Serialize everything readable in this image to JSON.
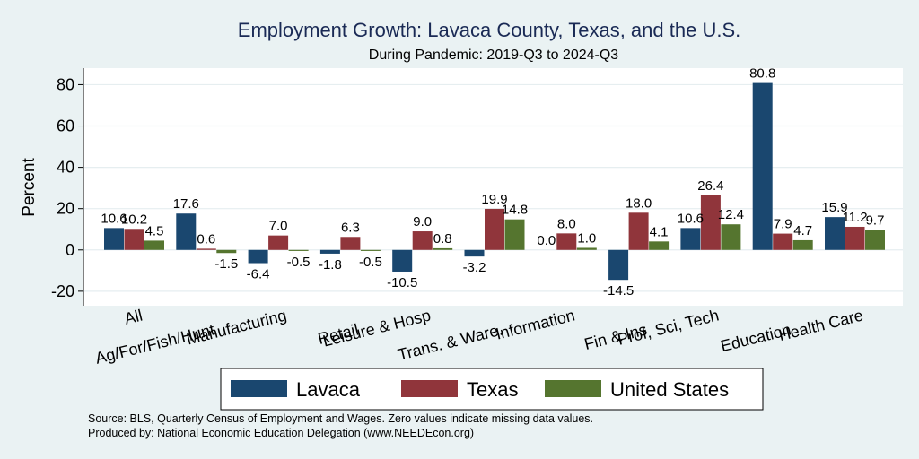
{
  "colors": {
    "background": "#eaf2f3",
    "plot_background": "#ffffff",
    "gridline": "#e6eef0",
    "axis": "#000000",
    "title": "#1a2a55"
  },
  "notes": {
    "source": "Source: BLS, Quarterly Census of Employment and Wages. Zero values indicate missing data values.",
    "produced": "Produced by: National Economic Education Delegation (www.NEEDEcon.org)"
  },
  "chart_data": {
    "type": "bar",
    "title": "Employment Growth: Lavaca County, Texas, and the U.S.",
    "subtitle": "During Pandemic: 2019-Q3 to 2024-Q3",
    "xlabel": "",
    "ylabel": "Percent",
    "ylim": [
      -27,
      88
    ],
    "yticks": [
      -20,
      0,
      20,
      40,
      60,
      80
    ],
    "grid": true,
    "legend_position": "bottom",
    "categories": [
      "All",
      "Ag/For/Fish/Hunt",
      "Manufacturing",
      "Retail",
      "Leisure & Hosp",
      "Trans. & Ware.",
      "Information",
      "Fin & Ins",
      "Prof, Sci, Tech",
      "Education",
      "Health Care"
    ],
    "series": [
      {
        "name": "Lavaca",
        "color": "#1a476f",
        "values": [
          10.6,
          17.6,
          -6.4,
          -1.8,
          -10.5,
          -3.2,
          0.0,
          -14.5,
          10.6,
          80.8,
          15.9
        ]
      },
      {
        "name": "Texas",
        "color": "#90353b",
        "values": [
          10.2,
          0.6,
          7.0,
          6.3,
          9.0,
          19.9,
          8.0,
          18.0,
          26.4,
          7.9,
          11.2
        ]
      },
      {
        "name": "United States",
        "color": "#55752f",
        "values": [
          4.5,
          -1.5,
          -0.5,
          -0.5,
          0.8,
          14.8,
          1.0,
          4.1,
          12.4,
          4.7,
          9.7
        ]
      }
    ]
  }
}
